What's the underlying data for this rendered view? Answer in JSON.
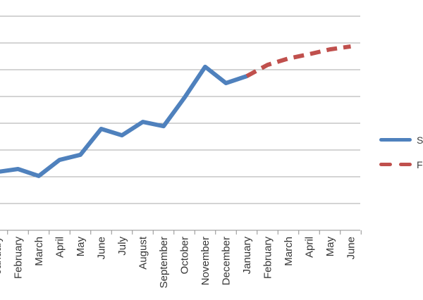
{
  "chart": {
    "legend": {
      "position": "right",
      "entries": [
        {
          "label": "S",
          "style": "solid",
          "color": "#4F81BD"
        },
        {
          "label": "F",
          "style": "dashed",
          "color": "#C0504D"
        }
      ]
    },
    "colors": {
      "gridline": "#a8a8a8",
      "axis": "#8f8f8f",
      "label_text": "#363636"
    }
  },
  "chart_data": {
    "type": "line",
    "title": "",
    "xlabel": "",
    "ylabel": "",
    "categories": [
      "January",
      "February",
      "March",
      "April",
      "May",
      "June",
      "July",
      "August",
      "September",
      "October",
      "November",
      "December",
      "January",
      "February",
      "March",
      "April",
      "May",
      "June"
    ],
    "series": [
      {
        "name": "S",
        "color": "#4F81BD",
        "style": "solid",
        "values": [
          2.18,
          2.29,
          2.03,
          2.63,
          2.82,
          3.79,
          3.55,
          4.05,
          3.89,
          4.95,
          6.11,
          5.5,
          5.76,
          null,
          null,
          null,
          null,
          null
        ]
      },
      {
        "name": "F",
        "color": "#C0504D",
        "style": "dashed",
        "values": [
          null,
          null,
          null,
          null,
          null,
          null,
          null,
          null,
          null,
          null,
          null,
          null,
          5.76,
          6.18,
          6.42,
          6.58,
          6.76,
          6.87
        ]
      }
    ],
    "ylim": [
      0,
      8
    ],
    "gridline_step": 1,
    "value_unit": "gridline-intervals (y-axis scale cropped out of view)",
    "gridlines": "horizontal",
    "y_axis_labels_visible": false,
    "x_labels_rotation_deg": -90,
    "legend_position": "right"
  }
}
